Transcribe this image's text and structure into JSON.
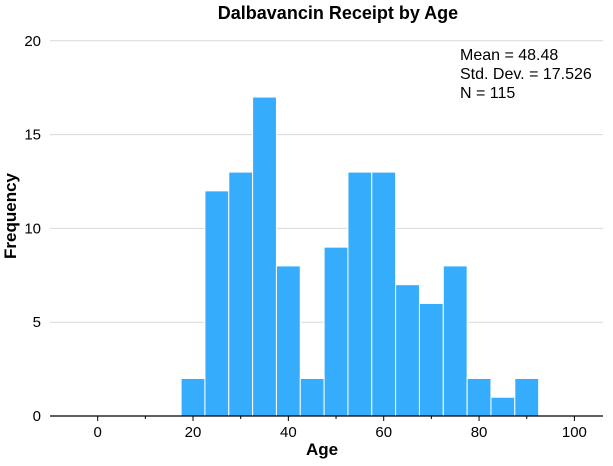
{
  "chart_data": {
    "type": "bar",
    "title": "Dalbavancin Receipt by Age",
    "xlabel": "Age",
    "ylabel": "Frequency",
    "xlim": [
      -10,
      106
    ],
    "ylim": [
      0,
      21
    ],
    "xticks": [
      0,
      20,
      40,
      60,
      80,
      100
    ],
    "yticks": [
      0,
      5,
      10,
      15,
      20
    ],
    "grid": true,
    "bin_width": 5,
    "bins": [
      {
        "start": 17.5,
        "end": 22.5,
        "value": 2
      },
      {
        "start": 22.5,
        "end": 27.5,
        "value": 12
      },
      {
        "start": 27.5,
        "end": 32.5,
        "value": 13
      },
      {
        "start": 32.5,
        "end": 37.5,
        "value": 17
      },
      {
        "start": 37.5,
        "end": 42.5,
        "value": 8
      },
      {
        "start": 42.5,
        "end": 47.5,
        "value": 2
      },
      {
        "start": 47.5,
        "end": 52.5,
        "value": 9
      },
      {
        "start": 52.5,
        "end": 57.5,
        "value": 13
      },
      {
        "start": 57.5,
        "end": 62.5,
        "value": 13
      },
      {
        "start": 62.5,
        "end": 67.5,
        "value": 7
      },
      {
        "start": 67.5,
        "end": 72.5,
        "value": 6
      },
      {
        "start": 72.5,
        "end": 77.5,
        "value": 8
      },
      {
        "start": 77.5,
        "end": 82.5,
        "value": 2
      },
      {
        "start": 82.5,
        "end": 87.5,
        "value": 1
      },
      {
        "start": 87.5,
        "end": 92.5,
        "value": 2
      }
    ],
    "stats": {
      "mean_label": "Mean = 48.48",
      "sd_label": "Std. Dev. = 17.526",
      "n_label": "N = 115"
    },
    "bar_color": "#35adfc",
    "legend_placement": "top-right"
  }
}
